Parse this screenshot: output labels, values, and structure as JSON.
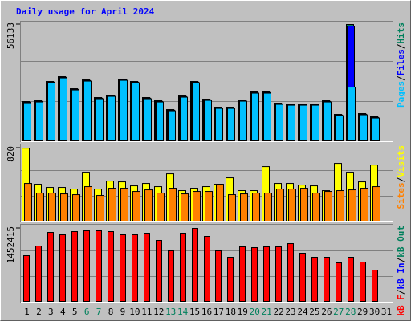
{
  "chart_data": [
    {
      "type": "bar",
      "title": "Daily usage for April 2024",
      "categories": [
        "1",
        "2",
        "3",
        "4",
        "5",
        "6",
        "7",
        "8",
        "9",
        "10",
        "11",
        "12",
        "13",
        "14",
        "15",
        "16",
        "17",
        "18",
        "19",
        "20",
        "21",
        "22",
        "23",
        "24",
        "25",
        "26",
        "27",
        "28",
        "29",
        "30",
        "31"
      ],
      "weekends": [
        6,
        7,
        13,
        14,
        20,
        21,
        27,
        28
      ],
      "weekend_color": "#00805c",
      "category_color": "#000000",
      "legend_separator": "/",
      "draw_order": "reverse",
      "ylim": [
        0,
        56133
      ],
      "yticks": [
        56133
      ],
      "series": [
        {
          "name": "Pages",
          "color": "#00c0ff",
          "values": [
            18360,
            18750,
            28040,
            30360,
            24550,
            28810,
            20300,
            21460,
            29200,
            28040,
            20300,
            18750,
            14490,
            21070,
            28040,
            19520,
            15650,
            15650,
            19140,
            23010,
            23010,
            17590,
            17200,
            17200,
            17200,
            18750,
            12170,
            25930,
            12560,
            11010,
            null
          ]
        },
        {
          "name": "Files",
          "color": "#0000ff",
          "values": [
            18660,
            19050,
            28340,
            30660,
            24850,
            29110,
            20600,
            21760,
            29500,
            28340,
            20600,
            19050,
            14790,
            21370,
            28340,
            19820,
            15950,
            15950,
            19440,
            23310,
            23310,
            17890,
            17500,
            17500,
            17500,
            19050,
            12470,
            55340,
            12860,
            11310,
            null
          ]
        },
        {
          "name": "Hits",
          "color": "#00805c",
          "values": [
            18960,
            19350,
            28640,
            30960,
            25150,
            29410,
            20900,
            22060,
            29800,
            28640,
            20900,
            19350,
            15090,
            21670,
            28640,
            20120,
            16250,
            16250,
            19740,
            23610,
            23610,
            18190,
            17800,
            17800,
            17800,
            19350,
            12770,
            56133,
            13160,
            11610,
            null
          ]
        }
      ]
    },
    {
      "type": "bar",
      "legend_separator": "/",
      "draw_order": "reverse",
      "ylim": [
        0,
        820
      ],
      "yticks": [
        820
      ],
      "series": [
        {
          "name": "Sites",
          "color": "#ff8000",
          "values": [
            423,
            315,
            315,
            306,
            297,
            387,
            288,
            369,
            369,
            333,
            351,
            315,
            369,
            306,
            333,
            333,
            414,
            297,
            306,
            315,
            315,
            360,
            360,
            369,
            315,
            333,
            342,
            351,
            369,
            387,
            null
          ]
        },
        {
          "name": "Visits",
          "color": "#ffff00",
          "values": [
            819,
            414,
            378,
            378,
            360,
            549,
            360,
            450,
            441,
            396,
            423,
            387,
            531,
            342,
            369,
            387,
            414,
            486,
            342,
            342,
            612,
            423,
            423,
            405,
            396,
            342,
            648,
            549,
            441,
            630,
            null
          ]
        }
      ]
    },
    {
      "type": "bar",
      "legend_separator": "/",
      "draw_order": "forward",
      "ylim": [
        0,
        1452415
      ],
      "yticks": [
        1452415
      ],
      "series": [
        {
          "name": "kB F",
          "color": "#ff0000",
          "values": [
            909720,
            1101240,
            1372560,
            1324680,
            1388520,
            1404480,
            1404480,
            1388520,
            1324680,
            1324680,
            1356600,
            1212960,
            1005480,
            1356600,
            1452415,
            1292760,
            1005480,
            877800,
            1085280,
            1069320,
            1085280,
            1085280,
            1149120,
            957600,
            877800,
            877800,
            766080,
            877800,
            782040,
            622440,
            null
          ]
        },
        {
          "name": "kB In",
          "color": "#0000ff",
          "values": [
            0,
            0,
            0,
            0,
            0,
            0,
            0,
            0,
            0,
            0,
            0,
            0,
            0,
            0,
            0,
            0,
            0,
            0,
            0,
            0,
            0,
            0,
            0,
            0,
            0,
            0,
            0,
            0,
            0,
            0,
            null
          ]
        },
        {
          "name": "kB Out",
          "color": "#00805c",
          "values": [
            0,
            0,
            0,
            0,
            0,
            0,
            0,
            0,
            0,
            0,
            0,
            0,
            0,
            0,
            0,
            0,
            0,
            0,
            0,
            0,
            0,
            0,
            0,
            0,
            0,
            0,
            0,
            0,
            0,
            0,
            null
          ]
        }
      ]
    }
  ]
}
